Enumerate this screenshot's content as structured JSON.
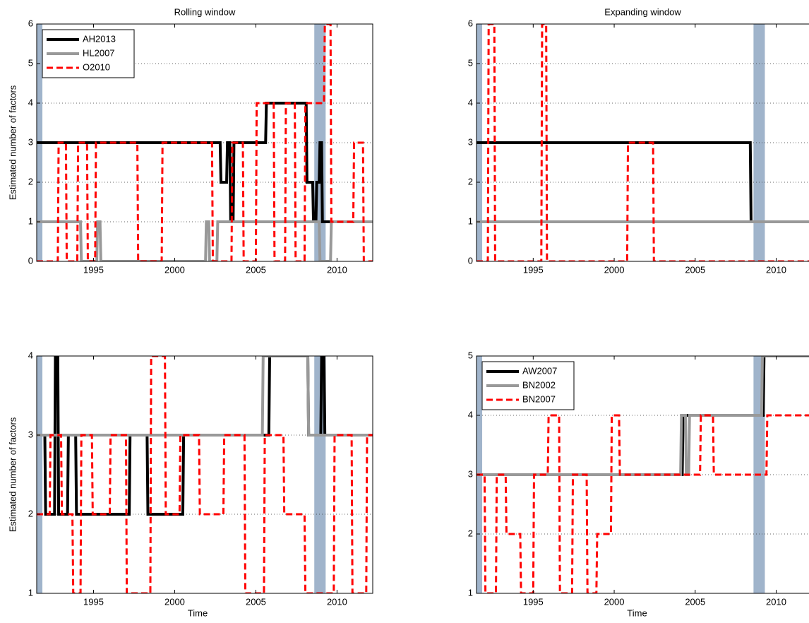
{
  "chart_data": [
    {
      "type": "line",
      "title": "Rolling window",
      "y_label": "Estimated number of factors",
      "xlim": [
        1991.5,
        2012.2
      ],
      "ylim": [
        0,
        6
      ],
      "xticks": [
        1995,
        2000,
        2005,
        2010
      ],
      "yticks": [
        0,
        1,
        2,
        3,
        4,
        5,
        6
      ],
      "grid": "y",
      "legend": "upper left",
      "shaded_periods": [
        [
          1991.5,
          1991.85
        ],
        [
          2008.6,
          2009.3
        ]
      ],
      "series": [
        {
          "name": "AH2013",
          "color": "#000000",
          "linestyle": "solid",
          "x": [
            1991.5,
            2002.8,
            2002.85,
            2003.2,
            2003.25,
            2003.4,
            2003.45,
            2003.6,
            2003.65,
            2005.6,
            2005.65,
            2008.1,
            2008.15,
            2008.5,
            2008.55,
            2008.7,
            2008.75,
            2008.9,
            2008.95,
            2009.05,
            2009.1,
            2012.2
          ],
          "values": [
            3,
            3,
            2,
            2,
            3,
            3,
            1,
            1,
            3,
            3,
            4,
            4,
            2,
            2,
            1,
            1,
            2,
            2,
            3,
            3,
            1,
            1
          ]
        },
        {
          "name": "HL2007",
          "color": "#999999",
          "linestyle": "solid",
          "x": [
            1991.5,
            1994.2,
            1994.25,
            1995.2,
            1995.25,
            1995.4,
            1995.45,
            2001.9,
            2001.95,
            2002.1,
            2002.15,
            2002.6,
            2002.65,
            2008.9,
            2008.95,
            2009.6,
            2009.65,
            2012.2
          ],
          "values": [
            1,
            1,
            0,
            0,
            1,
            1,
            0,
            0,
            1,
            1,
            0,
            0,
            1,
            1,
            0,
            0,
            1,
            1
          ]
        },
        {
          "name": "O2010",
          "color": "#ff0000",
          "linestyle": "dashed",
          "x": [
            1991.5,
            1992.8,
            1992.85,
            1993.3,
            1993.35,
            1994.0,
            1994.05,
            1994.6,
            1994.65,
            1995.1,
            1995.15,
            1997.7,
            1997.75,
            1999.2,
            1999.25,
            2002.3,
            2002.35,
            2003.5,
            2003.55,
            2004.2,
            2004.25,
            2005.0,
            2005.05,
            2006.1,
            2006.15,
            2006.8,
            2006.85,
            2007.4,
            2007.45,
            2008.0,
            2008.05,
            2009.2,
            2009.25,
            2009.6,
            2009.65,
            2011.0,
            2011.05,
            2011.6,
            2011.65,
            2012.2
          ],
          "values": [
            0,
            0,
            3,
            3,
            0,
            0,
            3,
            3,
            0,
            0,
            3,
            3,
            0,
            0,
            3,
            3,
            0,
            0,
            3,
            3,
            0,
            0,
            4,
            4,
            0,
            0,
            4,
            4,
            0,
            0,
            4,
            4,
            6,
            6,
            1,
            1,
            3,
            3,
            0,
            0
          ]
        }
      ]
    },
    {
      "type": "line",
      "title": "Expanding window",
      "xlim": [
        1991.5,
        2012.2
      ],
      "ylim": [
        0,
        6
      ],
      "xticks": [
        1995,
        2000,
        2005,
        2010
      ],
      "yticks": [
        0,
        1,
        2,
        3,
        4,
        5,
        6
      ],
      "grid": "y",
      "shaded_periods": [
        [
          1991.5,
          1991.85
        ],
        [
          2008.6,
          2009.3
        ]
      ],
      "series": [
        {
          "color": "#000000",
          "linestyle": "solid",
          "x": [
            1991.5,
            2008.4,
            2008.45,
            2012.2
          ],
          "values": [
            3,
            3,
            1,
            1
          ]
        },
        {
          "color": "#999999",
          "linestyle": "solid",
          "x": [
            1991.5,
            2012.2
          ],
          "values": [
            1,
            1
          ]
        },
        {
          "color": "#ff0000",
          "linestyle": "dashed",
          "x": [
            1991.5,
            1992.2,
            1992.25,
            1992.6,
            1992.65,
            1995.5,
            1995.55,
            1995.8,
            1995.85,
            2000.8,
            2000.85,
            2002.4,
            2002.45,
            2012.2
          ],
          "values": [
            0,
            0,
            6,
            6,
            0,
            0,
            6,
            6,
            0,
            0,
            3,
            3,
            0,
            0
          ]
        }
      ]
    },
    {
      "type": "line",
      "y_label": "Estimated number of factors",
      "x_label": "Time",
      "xlim": [
        1991.5,
        2012.2
      ],
      "ylim": [
        1,
        4
      ],
      "xticks": [
        1995,
        2000,
        2005,
        2010
      ],
      "yticks": [
        1,
        2,
        3,
        4
      ],
      "grid": "y",
      "shaded_periods": [
        [
          1991.5,
          1991.85
        ],
        [
          2008.6,
          2009.3
        ]
      ],
      "series": [
        {
          "color": "#000000",
          "linestyle": "solid",
          "x": [
            1991.5,
            1992.0,
            1992.05,
            1992.6,
            1992.65,
            1992.8,
            1992.85,
            1993.4,
            1993.45,
            1993.9,
            1993.95,
            1997.2,
            1997.25,
            1998.3,
            1998.35,
            2000.5,
            2000.55,
            2005.8,
            2005.85,
            2008.2,
            2008.25,
            2009.0,
            2009.05,
            2009.2,
            2009.25,
            2012.2
          ],
          "values": [
            3,
            3,
            2,
            2,
            4,
            4,
            2,
            2,
            3,
            3,
            2,
            2,
            3,
            3,
            2,
            2,
            3,
            3,
            4,
            4,
            3,
            3,
            4,
            4,
            3,
            3
          ]
        },
        {
          "color": "#999999",
          "linestyle": "solid",
          "x": [
            1991.5,
            2005.4,
            2005.45,
            2008.2,
            2008.25,
            2012.2
          ],
          "values": [
            3,
            3,
            4,
            4,
            3,
            3
          ]
        },
        {
          "color": "#ff0000",
          "linestyle": "dashed",
          "x": [
            1991.5,
            1992.3,
            1992.35,
            1993.0,
            1993.05,
            1993.7,
            1993.75,
            1994.2,
            1994.25,
            1994.9,
            1994.95,
            1996.0,
            1996.05,
            1997.0,
            1997.05,
            1998.5,
            1998.55,
            1999.4,
            1999.45,
            2000.3,
            2000.35,
            2001.5,
            2001.55,
            2003.0,
            2003.05,
            2004.3,
            2004.35,
            2005.5,
            2005.55,
            2006.7,
            2006.75,
            2008.0,
            2008.05,
            2009.8,
            2009.85,
            2010.9,
            2010.95,
            2011.8,
            2011.85,
            2012.2
          ],
          "values": [
            2,
            2,
            3,
            3,
            2,
            2,
            1,
            1,
            3,
            3,
            2,
            2,
            3,
            3,
            1,
            1,
            4,
            4,
            2,
            2,
            3,
            3,
            2,
            2,
            3,
            3,
            1,
            1,
            3,
            3,
            2,
            2,
            1,
            1,
            3,
            3,
            1,
            1,
            3,
            3
          ]
        }
      ]
    },
    {
      "type": "line",
      "x_label": "Time",
      "xlim": [
        1991.5,
        2012.2
      ],
      "ylim": [
        1,
        5
      ],
      "xticks": [
        1995,
        2000,
        2005,
        2010
      ],
      "yticks": [
        1,
        2,
        3,
        4,
        5
      ],
      "grid": "y",
      "legend": "upper left",
      "shaded_periods": [
        [
          1991.5,
          1991.85
        ],
        [
          2008.6,
          2009.3
        ]
      ],
      "series": [
        {
          "name": "AW2007",
          "color": "#000000",
          "linestyle": "solid",
          "x": [
            1991.5,
            2004.2,
            2004.25,
            2009.2,
            2009.25,
            2012.2
          ],
          "values": [
            3,
            3,
            4,
            4,
            5,
            5
          ]
        },
        {
          "name": "BN2002",
          "color": "#999999",
          "linestyle": "solid",
          "x": [
            1991.5,
            2004.1,
            2004.15,
            2004.4,
            2004.45,
            2004.6,
            2004.65,
            2009.1,
            2009.15,
            2012.2
          ],
          "values": [
            3,
            3,
            4,
            4,
            3,
            3,
            4,
            4,
            5,
            5
          ]
        },
        {
          "name": "BN2007",
          "color": "#ff0000",
          "linestyle": "dashed",
          "x": [
            1991.5,
            1992.0,
            1992.05,
            1992.7,
            1992.75,
            1993.3,
            1993.35,
            1994.2,
            1994.25,
            1995.0,
            1995.05,
            1995.9,
            1995.95,
            1996.6,
            1996.65,
            1997.4,
            1997.45,
            1998.3,
            1998.35,
            1998.9,
            1998.95,
            1999.8,
            1999.85,
            2000.3,
            2000.35,
            2005.3,
            2005.35,
            2006.1,
            2006.15,
            2009.4,
            2009.45,
            2012.2
          ],
          "values": [
            3,
            3,
            1,
            1,
            3,
            3,
            2,
            2,
            1,
            1,
            3,
            3,
            4,
            4,
            1,
            1,
            3,
            3,
            1,
            1,
            2,
            2,
            4,
            4,
            3,
            3,
            4,
            4,
            3,
            3,
            4,
            4
          ]
        }
      ]
    }
  ]
}
